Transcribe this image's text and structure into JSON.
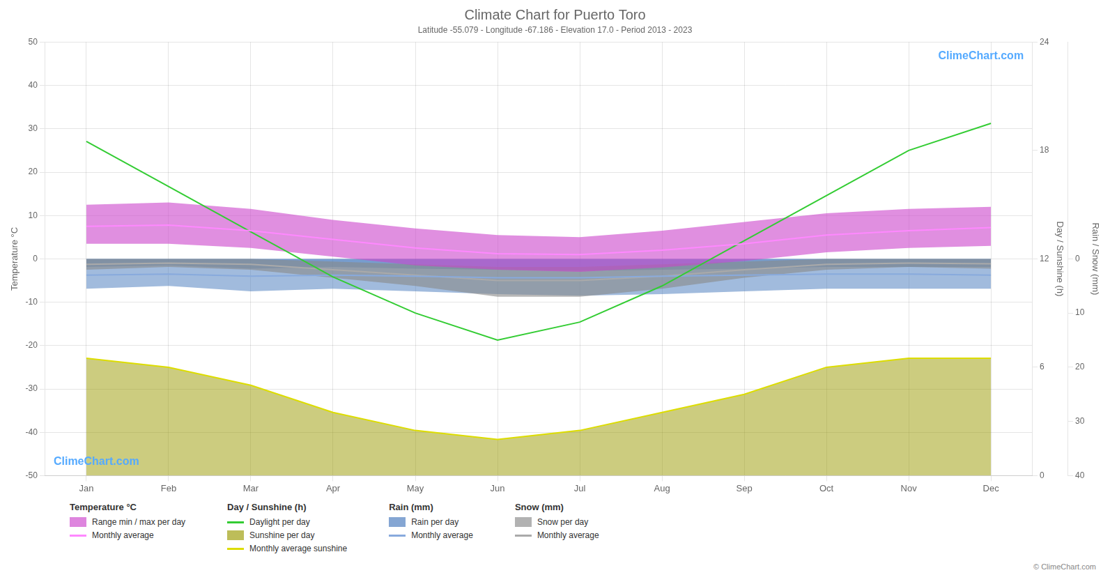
{
  "chart_data": {
    "type": "line",
    "title": "Climate Chart for Puerto Toro",
    "subtitle": "Latitude -55.079 - Longitude -67.186 - Elevation 17.0 - Period 2013 - 2023",
    "categories": [
      "Jan",
      "Feb",
      "Mar",
      "Apr",
      "May",
      "Jun",
      "Jul",
      "Aug",
      "Sep",
      "Oct",
      "Nov",
      "Dec"
    ],
    "ylabel": "Temperature °C",
    "y2label": "Day / Sunshine (h)",
    "y3label": "Rain / Snow (mm)",
    "ylim": [
      -50,
      50
    ],
    "yticks": [
      -50,
      -40,
      -30,
      -20,
      -10,
      0,
      10,
      20,
      30,
      40,
      50
    ],
    "y2lim": [
      0,
      24
    ],
    "y2ticks": [
      0,
      6,
      12,
      18,
      24
    ],
    "y3lim": [
      40,
      -40
    ],
    "y3ticks": [
      0,
      10,
      20,
      30,
      40
    ],
    "grid": true,
    "series": [
      {
        "name": "Range min / max per day",
        "group": "Temperature °C",
        "type": "range",
        "color": "#cc44cc",
        "low": [
          3.5,
          3.5,
          2.5,
          0.5,
          -1.5,
          -2.5,
          -3.0,
          -2.0,
          -0.5,
          1.5,
          2.5,
          3.0
        ],
        "high": [
          12.5,
          13.0,
          11.5,
          9.0,
          7.0,
          5.5,
          5.0,
          6.5,
          8.5,
          10.5,
          11.5,
          12.0
        ]
      },
      {
        "name": "Monthly average",
        "group": "Temperature °C",
        "type": "line",
        "color": "#ff88ff",
        "values": [
          7.5,
          7.8,
          6.5,
          4.5,
          2.5,
          1.2,
          1.0,
          2.0,
          3.5,
          5.5,
          6.5,
          7.2
        ]
      },
      {
        "name": "Daylight per day",
        "group": "Day / Sunshine (h)",
        "type": "line",
        "color": "#33cc33",
        "axis": "y2",
        "values": [
          18.5,
          16.0,
          13.5,
          11.0,
          9.0,
          7.5,
          8.5,
          10.5,
          13.0,
          15.5,
          18.0,
          19.5
        ]
      },
      {
        "name": "Sunshine per day",
        "group": "Day / Sunshine (h)",
        "type": "area",
        "color": "#999900",
        "axis": "y2",
        "values": [
          6.5,
          6.0,
          5.0,
          3.5,
          2.5,
          2.0,
          2.5,
          3.5,
          4.5,
          6.0,
          6.5,
          6.5
        ]
      },
      {
        "name": "Monthly average sunshine",
        "group": "Day / Sunshine (h)",
        "type": "line",
        "color": "#dddd00",
        "axis": "y2",
        "values": [
          6.5,
          6.0,
          5.0,
          3.5,
          2.5,
          2.0,
          2.5,
          3.5,
          4.5,
          6.0,
          6.5,
          6.5
        ]
      },
      {
        "name": "Rain per day",
        "group": "Rain (mm)",
        "type": "area",
        "color": "#4477bb",
        "axis": "y3",
        "values": [
          5.5,
          5.0,
          6.0,
          5.5,
          6.0,
          6.5,
          6.8,
          6.5,
          6.0,
          5.5,
          5.5,
          5.5
        ],
        "low": [
          1.5,
          1.2,
          1.8,
          1.5,
          1.8,
          2.0,
          2.2,
          2.0,
          1.8,
          1.5,
          1.5,
          1.5
        ]
      },
      {
        "name": "Monthly average",
        "group": "Rain (mm)",
        "type": "line",
        "color": "#88aadd",
        "axis": "y3",
        "values": [
          3.0,
          2.8,
          3.2,
          3.0,
          3.2,
          3.5,
          3.5,
          3.2,
          3.0,
          2.8,
          2.8,
          3.0
        ]
      },
      {
        "name": "Snow per day",
        "group": "Snow (mm)",
        "type": "range",
        "color": "#888888",
        "axis": "y3",
        "low": [
          0.0,
          0.0,
          0.0,
          0.5,
          1.0,
          1.5,
          1.5,
          1.0,
          0.5,
          0.0,
          0.0,
          0.0
        ],
        "high": [
          2.0,
          1.5,
          2.0,
          3.5,
          5.0,
          7.0,
          7.0,
          5.5,
          3.5,
          2.0,
          1.5,
          1.8
        ]
      },
      {
        "name": "Monthly average",
        "group": "Snow (mm)",
        "type": "line",
        "color": "#aaaaaa",
        "axis": "y3",
        "values": [
          1.0,
          0.8,
          1.0,
          2.0,
          3.0,
          4.0,
          4.0,
          3.2,
          2.0,
          1.0,
          0.8,
          0.9
        ]
      }
    ],
    "annotations": [
      {
        "text": "ClimeChart.com",
        "color": "#55aaff"
      },
      {
        "text": "ClimeChart.com",
        "color": "#55aaff"
      },
      {
        "text": "© ClimeChart.com",
        "color": "#888888"
      }
    ]
  }
}
